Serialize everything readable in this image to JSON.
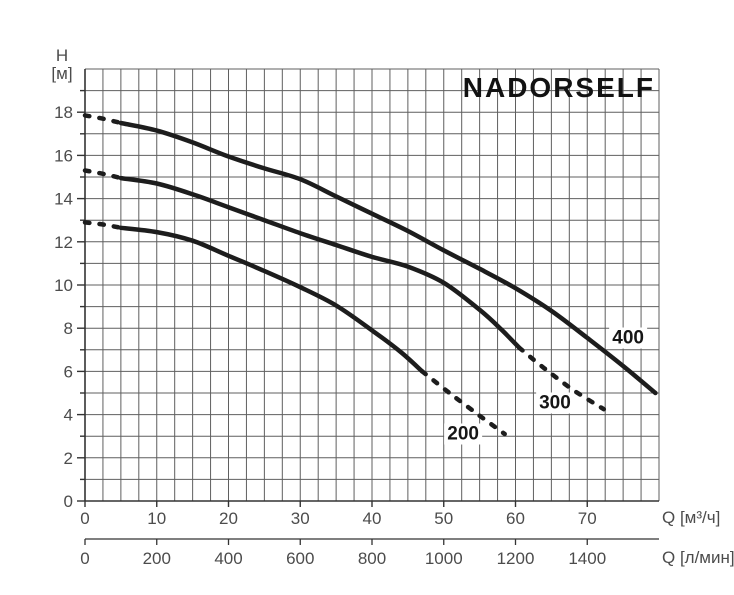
{
  "colors": {
    "background": "#ffffff",
    "grid": "#5f5f5f",
    "axis": "#333333",
    "curve": "#1d1d1d",
    "tick_text": "#4c4c4c",
    "title_text": "#121212"
  },
  "chart_data": {
    "type": "line",
    "title": "NADORSELF",
    "y_axis": {
      "label_line1": "H",
      "label_line2": "[м]",
      "min": 0,
      "max": 20,
      "major_ticks": [
        0,
        2,
        4,
        6,
        8,
        10,
        12,
        14,
        16,
        18
      ],
      "minor_step": 1,
      "grid": "on"
    },
    "x_axis_m3h": {
      "unit_label": "Q [м³/ч]",
      "min": 0,
      "max": 80,
      "major_ticks": [
        0,
        10,
        20,
        30,
        40,
        50,
        60,
        70
      ],
      "minor_step": 2.5,
      "grid": "on"
    },
    "x_axis_lmin": {
      "unit_label": "Q [л/мин]",
      "min": 0,
      "max": 1600,
      "major_ticks": [
        0,
        200,
        400,
        600,
        800,
        1000,
        1200,
        1400
      ]
    },
    "series": [
      {
        "name": "200",
        "label": "200",
        "label_q": 52.7,
        "label_h": 3.1,
        "dash_head": [
          [
            0,
            12.9
          ],
          [
            2.5,
            12.8
          ],
          [
            5,
            12.65
          ]
        ],
        "solid": [
          [
            5,
            12.65
          ],
          [
            10,
            12.45
          ],
          [
            15,
            12.05
          ],
          [
            20,
            11.35
          ],
          [
            25,
            10.65
          ],
          [
            30,
            9.9
          ],
          [
            35,
            9.05
          ],
          [
            40,
            7.9
          ],
          [
            44,
            6.9
          ],
          [
            47,
            6.0
          ]
        ],
        "dash_tail": [
          [
            47,
            6.0
          ],
          [
            51,
            4.95
          ],
          [
            55,
            3.95
          ],
          [
            58.5,
            3.1
          ]
        ]
      },
      {
        "name": "300",
        "label": "300",
        "label_q": 65.5,
        "label_h": 4.55,
        "dash_head": [
          [
            0,
            15.3
          ],
          [
            2.5,
            15.15
          ],
          [
            5,
            14.95
          ]
        ],
        "solid": [
          [
            5,
            14.95
          ],
          [
            10,
            14.7
          ],
          [
            15,
            14.2
          ],
          [
            20,
            13.6
          ],
          [
            25,
            13.0
          ],
          [
            30,
            12.4
          ],
          [
            35,
            11.85
          ],
          [
            40,
            11.3
          ],
          [
            45,
            10.85
          ],
          [
            50,
            10.1
          ],
          [
            55,
            8.85
          ],
          [
            58,
            7.95
          ],
          [
            60.5,
            7.1
          ]
        ],
        "dash_tail": [
          [
            60.5,
            7.1
          ],
          [
            64,
            6.15
          ],
          [
            68,
            5.15
          ],
          [
            72.3,
            4.25
          ]
        ]
      },
      {
        "name": "400",
        "label": "400",
        "label_q": 75.7,
        "label_h": 7.55,
        "dash_head": [
          [
            0,
            17.85
          ],
          [
            2.5,
            17.7
          ],
          [
            5,
            17.5
          ]
        ],
        "solid": [
          [
            5,
            17.5
          ],
          [
            10,
            17.15
          ],
          [
            15,
            16.6
          ],
          [
            20,
            15.95
          ],
          [
            25,
            15.4
          ],
          [
            30,
            14.9
          ],
          [
            35,
            14.1
          ],
          [
            40,
            13.3
          ],
          [
            45,
            12.5
          ],
          [
            50,
            11.6
          ],
          [
            55,
            10.75
          ],
          [
            60,
            9.85
          ],
          [
            65,
            8.8
          ],
          [
            70,
            7.55
          ],
          [
            75,
            6.25
          ],
          [
            79.5,
            5.0
          ]
        ],
        "dash_tail": []
      }
    ]
  }
}
